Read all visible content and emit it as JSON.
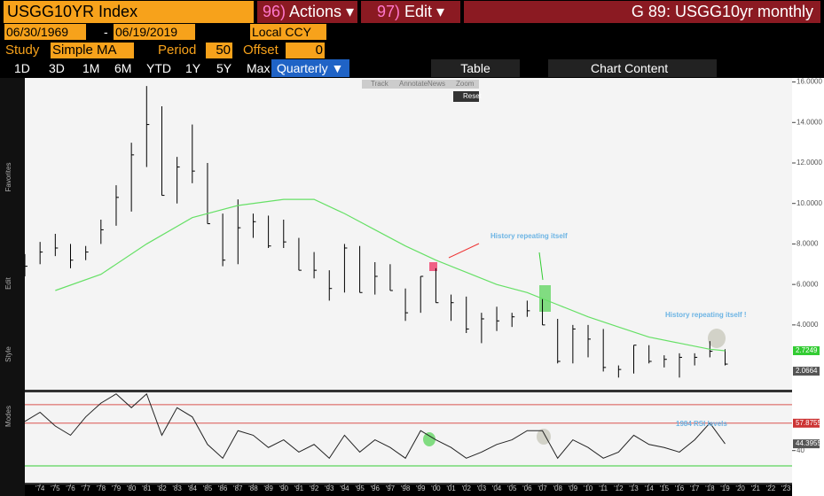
{
  "header": {
    "security": "USGG10YR Index",
    "actions_code": "96)",
    "actions": "Actions ▾",
    "edit_code": "97)",
    "edit": "Edit ▾",
    "page_title": "G 89: USGG10yr monthly"
  },
  "range": {
    "start": "06/30/1969",
    "dash": "-",
    "end": "06/19/2019",
    "currency": "Local CCY"
  },
  "study": {
    "label": "Study",
    "name": "Simple MA",
    "period_label": "Period",
    "period": "50",
    "offset_label": "Offset",
    "offset": "0"
  },
  "periods": [
    "1D",
    "3D",
    "1M",
    "6M",
    "YTD",
    "1Y",
    "5Y",
    "Max"
  ],
  "frequency": "Quarterly ▼",
  "table": "Table",
  "chart_content": "Chart Content",
  "mini_toolbar": [
    "Track",
    "Annotate",
    "News",
    "Zoom"
  ],
  "reset": "Reset",
  "side_labels": [
    "Favorites",
    "Edit",
    "Style",
    "Modes"
  ],
  "chart_data": [
    {
      "type": "ohlc",
      "annotations": [
        "History repeating itself",
        "History repeating itself !"
      ],
      "x": [
        1973,
        1974,
        1975,
        1976,
        1977,
        1978,
        1979,
        1980,
        1981,
        1982,
        1983,
        1984,
        1985,
        1986,
        1987,
        1988,
        1989,
        1990,
        1991,
        1992,
        1993,
        1994,
        1995,
        1996,
        1997,
        1998,
        1999,
        2000,
        2001,
        2002,
        2003,
        2004,
        2005,
        2006,
        2007,
        2008,
        2009,
        2010,
        2011,
        2012,
        2013,
        2014,
        2015,
        2016,
        2017,
        2018,
        2019
      ],
      "series": [
        {
          "color": "#000000",
          "values": [
            6.9,
            7.6,
            7.8,
            7.2,
            7.6,
            8.7,
            10.3,
            12.4,
            13.9,
            10.4,
            11.8,
            11.6,
            9.0,
            7.2,
            8.8,
            9.1,
            7.9,
            8.1,
            6.7,
            6.7,
            5.8,
            7.8,
            5.6,
            6.4,
            5.7,
            4.6,
            6.4,
            5.1,
            5.1,
            3.8,
            4.3,
            4.2,
            4.4,
            4.7,
            4.0,
            2.2,
            3.8,
            3.3,
            1.9,
            1.8,
            3.0,
            2.2,
            2.3,
            2.4,
            2.4,
            2.7,
            2.0664
          ],
          "high": [
            7.5,
            8.1,
            8.5,
            8.0,
            7.9,
            9.2,
            10.9,
            13.0,
            15.8,
            14.8,
            12.3,
            13.9,
            12.0,
            9.5,
            10.2,
            9.5,
            9.4,
            9.2,
            8.3,
            7.6,
            6.7,
            8.0,
            7.9,
            7.1,
            7.0,
            5.8,
            6.4,
            6.8,
            5.5,
            5.4,
            4.6,
            4.9,
            4.6,
            5.2,
            5.3,
            4.3,
            4.0,
            4.0,
            3.8,
            2.0,
            3.0,
            3.0,
            2.5,
            2.6,
            2.6,
            3.2,
            2.8
          ],
          "low": [
            6.4,
            7.0,
            7.4,
            6.8,
            7.2,
            8.0,
            8.9,
            9.6,
            11.8,
            10.4,
            10.0,
            11.0,
            9.0,
            6.9,
            7.0,
            8.3,
            7.8,
            7.8,
            6.7,
            6.3,
            5.2,
            5.6,
            5.6,
            5.5,
            5.7,
            4.2,
            4.6,
            5.1,
            4.2,
            3.6,
            3.1,
            3.7,
            3.9,
            4.4,
            4.0,
            2.1,
            2.1,
            2.4,
            1.7,
            1.4,
            1.6,
            2.1,
            1.9,
            1.4,
            2.0,
            2.4,
            2.0
          ]
        },
        {
          "color": "#66e066",
          "x": [
            1975,
            1978,
            1981,
            1984,
            1987,
            1990,
            1992,
            1994,
            1996,
            1998,
            2000,
            2002,
            2004,
            2006,
            2008,
            2010,
            2012,
            2014,
            2016,
            2018,
            2019
          ],
          "values": [
            5.7,
            6.5,
            8.0,
            9.3,
            9.9,
            10.2,
            10.2,
            9.5,
            8.7,
            7.9,
            7.2,
            6.6,
            6.0,
            5.6,
            5.0,
            4.4,
            3.9,
            3.4,
            3.1,
            2.8,
            2.7249
          ]
        }
      ],
      "xlim": [
        1973,
        2023.4
      ],
      "xticks": [
        {
          "value": 1974,
          "label": "'74"
        },
        {
          "value": 1975,
          "label": "'75"
        },
        {
          "value": 1976,
          "label": "'76"
        },
        {
          "value": 1977,
          "label": "'77"
        },
        {
          "value": 1978,
          "label": "'78"
        },
        {
          "value": 1979,
          "label": "'79"
        },
        {
          "value": 1980,
          "label": "'80"
        },
        {
          "value": 1981,
          "label": "'81"
        },
        {
          "value": 1982,
          "label": "'82"
        },
        {
          "value": 1983,
          "label": "'83"
        },
        {
          "value": 1984,
          "label": "'84"
        },
        {
          "value": 1985,
          "label": "'85"
        },
        {
          "value": 1986,
          "label": "'86"
        },
        {
          "value": 1987,
          "label": "'87"
        },
        {
          "value": 1988,
          "label": "'88"
        },
        {
          "value": 1989,
          "label": "'89"
        },
        {
          "value": 1990,
          "label": "'90"
        },
        {
          "value": 1991,
          "label": "'91"
        },
        {
          "value": 1992,
          "label": "'92"
        },
        {
          "value": 1993,
          "label": "'93"
        },
        {
          "value": 1994,
          "label": "'94"
        },
        {
          "value": 1995,
          "label": "'95"
        },
        {
          "value": 1996,
          "label": "'96"
        },
        {
          "value": 1997,
          "label": "'97"
        },
        {
          "value": 1998,
          "label": "'98"
        },
        {
          "value": 1999,
          "label": "'99"
        },
        {
          "value": 2000,
          "label": "'00"
        },
        {
          "value": 2001,
          "label": "'01"
        },
        {
          "value": 2002,
          "label": "'02"
        },
        {
          "value": 2003,
          "label": "'03"
        },
        {
          "value": 2004,
          "label": "'04"
        },
        {
          "value": 2005,
          "label": "'05"
        },
        {
          "value": 2006,
          "label": "'06"
        },
        {
          "value": 2007,
          "label": "'07"
        },
        {
          "value": 2008,
          "label": "'08"
        },
        {
          "value": 2009,
          "label": "'09"
        },
        {
          "value": 2010,
          "label": "'10"
        },
        {
          "value": 2011,
          "label": "'11"
        },
        {
          "value": 2012,
          "label": "'12"
        },
        {
          "value": 2013,
          "label": "'13"
        },
        {
          "value": 2014,
          "label": "'14"
        },
        {
          "value": 2015,
          "label": "'15"
        },
        {
          "value": 2016,
          "label": "'16"
        },
        {
          "value": 2017,
          "label": "'17"
        },
        {
          "value": 2018,
          "label": "'18"
        },
        {
          "value": 2019,
          "label": "'19"
        },
        {
          "value": 2020,
          "label": "'20"
        },
        {
          "value": 2021,
          "label": "'21"
        },
        {
          "value": 2022,
          "label": "'22"
        },
        {
          "value": 2023,
          "label": "'23"
        }
      ],
      "ylim": [
        0.8,
        16.2
      ],
      "yticks": [
        {
          "value": 4,
          "label": "4.0000"
        },
        {
          "value": 6,
          "label": "6.0000"
        },
        {
          "value": 8,
          "label": "8.0000"
        },
        {
          "value": 10,
          "label": "10.0000"
        },
        {
          "value": 12,
          "label": "12.0000"
        },
        {
          "value": 14,
          "label": "14.0000"
        },
        {
          "value": 16,
          "label": "16.0000"
        }
      ]
    },
    {
      "type": "line",
      "annotations": [
        "1984 RSI levels"
      ],
      "color": "#222222",
      "x": [
        1973,
        1974,
        1975,
        1976,
        1977,
        1978,
        1979,
        1980,
        1981,
        1982,
        1983,
        1984,
        1985,
        1986,
        1987,
        1988,
        1989,
        1990,
        1991,
        1992,
        1993,
        1994,
        1995,
        1996,
        1997,
        1998,
        1999,
        2000,
        2001,
        2002,
        2003,
        2004,
        2005,
        2006,
        2007,
        2008,
        2009,
        2010,
        2011,
        2012,
        2013,
        2014,
        2015,
        2016,
        2017,
        2018,
        2019
      ],
      "values": [
        59,
        65,
        56,
        50,
        62,
        71,
        77,
        68,
        77,
        50,
        68,
        62,
        44,
        35,
        53,
        50,
        42,
        47,
        39,
        44,
        35,
        50,
        39,
        47,
        42,
        35,
        53,
        47,
        42,
        35,
        39,
        44,
        47,
        53,
        53,
        35,
        47,
        42,
        35,
        39,
        50,
        44,
        42,
        39,
        47,
        58,
        44.3955
      ],
      "levels": [
        {
          "value": 70,
          "color": "#d9534f"
        },
        {
          "value": 57.8755,
          "color": "#d9534f"
        },
        {
          "value": 30,
          "color": "#33cc33"
        }
      ],
      "ylim": [
        19,
        78
      ],
      "yticks": [
        40
      ]
    }
  ]
}
